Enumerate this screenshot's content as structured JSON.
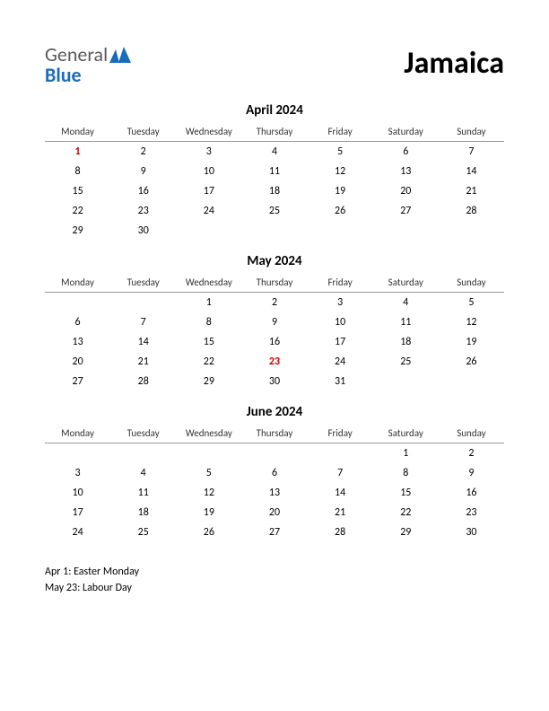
{
  "logo": {
    "text_general": "General",
    "text_blue": "Blue",
    "icon_color": "#1a6bb8"
  },
  "country_title": "Jamaica",
  "day_headers": [
    "Monday",
    "Tuesday",
    "Wednesday",
    "Thursday",
    "Friday",
    "Saturday",
    "Sunday"
  ],
  "months": [
    {
      "title": "April 2024",
      "weeks": [
        [
          {
            "d": "1",
            "h": true
          },
          {
            "d": "2"
          },
          {
            "d": "3"
          },
          {
            "d": "4"
          },
          {
            "d": "5"
          },
          {
            "d": "6"
          },
          {
            "d": "7"
          }
        ],
        [
          {
            "d": "8"
          },
          {
            "d": "9"
          },
          {
            "d": "10"
          },
          {
            "d": "11"
          },
          {
            "d": "12"
          },
          {
            "d": "13"
          },
          {
            "d": "14"
          }
        ],
        [
          {
            "d": "15"
          },
          {
            "d": "16"
          },
          {
            "d": "17"
          },
          {
            "d": "18"
          },
          {
            "d": "19"
          },
          {
            "d": "20"
          },
          {
            "d": "21"
          }
        ],
        [
          {
            "d": "22"
          },
          {
            "d": "23"
          },
          {
            "d": "24"
          },
          {
            "d": "25"
          },
          {
            "d": "26"
          },
          {
            "d": "27"
          },
          {
            "d": "28"
          }
        ],
        [
          {
            "d": "29"
          },
          {
            "d": "30"
          },
          {
            "d": ""
          },
          {
            "d": ""
          },
          {
            "d": ""
          },
          {
            "d": ""
          },
          {
            "d": ""
          }
        ]
      ]
    },
    {
      "title": "May 2024",
      "weeks": [
        [
          {
            "d": ""
          },
          {
            "d": ""
          },
          {
            "d": "1"
          },
          {
            "d": "2"
          },
          {
            "d": "3"
          },
          {
            "d": "4"
          },
          {
            "d": "5"
          }
        ],
        [
          {
            "d": "6"
          },
          {
            "d": "7"
          },
          {
            "d": "8"
          },
          {
            "d": "9"
          },
          {
            "d": "10"
          },
          {
            "d": "11"
          },
          {
            "d": "12"
          }
        ],
        [
          {
            "d": "13"
          },
          {
            "d": "14"
          },
          {
            "d": "15"
          },
          {
            "d": "16"
          },
          {
            "d": "17"
          },
          {
            "d": "18"
          },
          {
            "d": "19"
          }
        ],
        [
          {
            "d": "20"
          },
          {
            "d": "21"
          },
          {
            "d": "22"
          },
          {
            "d": "23",
            "h": true
          },
          {
            "d": "24"
          },
          {
            "d": "25"
          },
          {
            "d": "26"
          }
        ],
        [
          {
            "d": "27"
          },
          {
            "d": "28"
          },
          {
            "d": "29"
          },
          {
            "d": "30"
          },
          {
            "d": "31"
          },
          {
            "d": ""
          },
          {
            "d": ""
          }
        ]
      ]
    },
    {
      "title": "June 2024",
      "weeks": [
        [
          {
            "d": ""
          },
          {
            "d": ""
          },
          {
            "d": ""
          },
          {
            "d": ""
          },
          {
            "d": ""
          },
          {
            "d": "1"
          },
          {
            "d": "2"
          }
        ],
        [
          {
            "d": "3"
          },
          {
            "d": "4"
          },
          {
            "d": "5"
          },
          {
            "d": "6"
          },
          {
            "d": "7"
          },
          {
            "d": "8"
          },
          {
            "d": "9"
          }
        ],
        [
          {
            "d": "10"
          },
          {
            "d": "11"
          },
          {
            "d": "12"
          },
          {
            "d": "13"
          },
          {
            "d": "14"
          },
          {
            "d": "15"
          },
          {
            "d": "16"
          }
        ],
        [
          {
            "d": "17"
          },
          {
            "d": "18"
          },
          {
            "d": "19"
          },
          {
            "d": "20"
          },
          {
            "d": "21"
          },
          {
            "d": "22"
          },
          {
            "d": "23"
          }
        ],
        [
          {
            "d": "24"
          },
          {
            "d": "25"
          },
          {
            "d": "26"
          },
          {
            "d": "27"
          },
          {
            "d": "28"
          },
          {
            "d": "29"
          },
          {
            "d": "30"
          }
        ]
      ]
    }
  ],
  "holidays": [
    "Apr 1: Easter Monday",
    "May 23: Labour Day"
  ],
  "colors": {
    "holiday_text": "#cc0000",
    "header_border": "#999999",
    "text": "#000000",
    "background": "#ffffff"
  },
  "typography": {
    "country_title_size": 34,
    "month_title_size": 15,
    "day_header_size": 11,
    "cell_size": 12,
    "holiday_list_size": 12
  }
}
